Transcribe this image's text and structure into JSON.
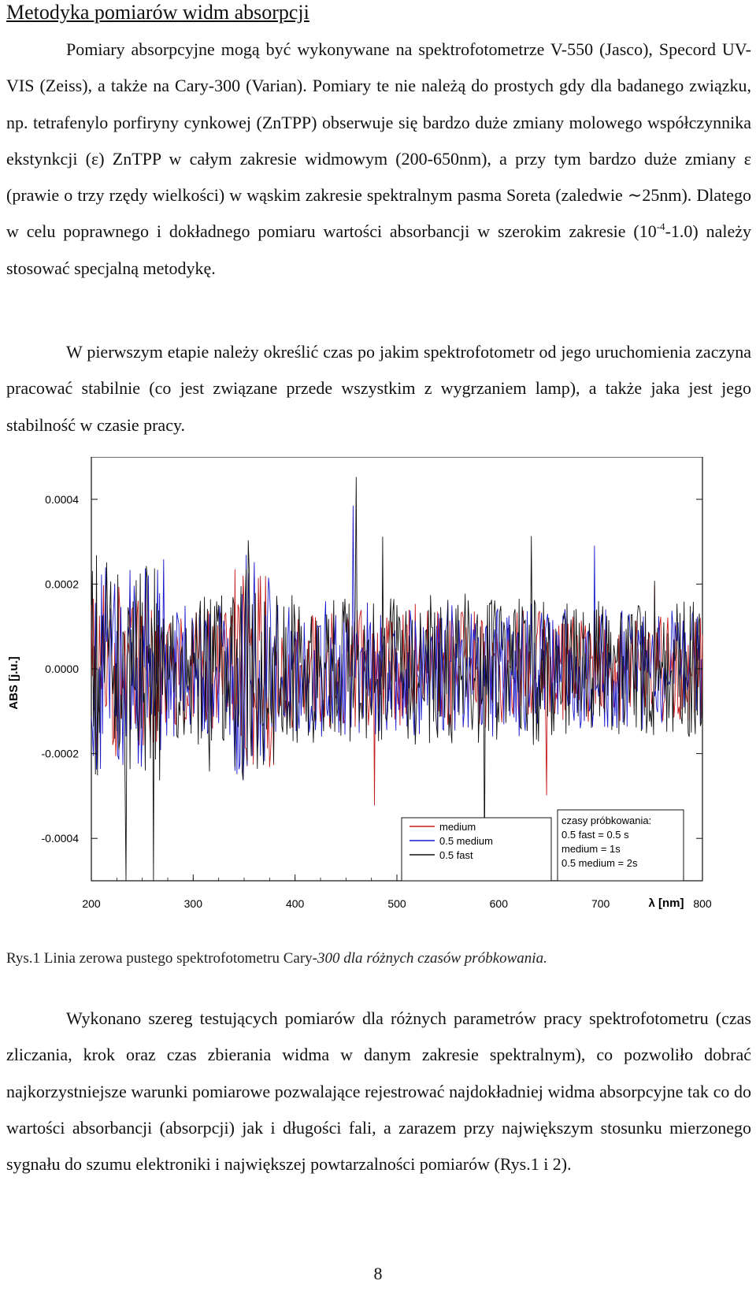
{
  "title": "Metodyka pomiarów widm absorpcji",
  "paragraph1": {
    "part1": "Pomiary absorpcyjne mogą być wykonywane na spektrofotometrze V-550 (Jasco), Specord UV-VIS (Zeiss), a także na Cary-300 (Varian). Pomiary te nie należą do prostych gdy dla badanego związku, np. tetrafenylo porfiryny cynkowej (ZnTPP) obserwuje się bardzo duże zmiany molowego współczynnika ekstynkcji (ε) ZnTPP w całym zakresie widmowym (200-650nm), a przy tym bardzo duże zmiany ε (prawie o trzy rzędy wielkości) w wąskim zakresie spektralnym pasma Soreta (zaledwie ∼25nm). Dlatego w celu poprawnego i dokładnego pomiaru wartości absorbancji w szerokim zakresie (10",
    "sup": "-4",
    "part2": "-1.0) należy stosować specjalną metodykę."
  },
  "paragraph2": "W pierwszym etapie należy określić czas po jakim spektrofotometr od jego uruchomienia zaczyna pracować stabilnie (co jest związane przede wszystkim z wygrzaniem lamp), a także jaka jest jego stabilność w czasie pracy.",
  "caption": {
    "normal": "Rys.1 Linia zerowa pustego spektrofotometru Cary-",
    "italic": "300 dla różnych czasów próbkowania."
  },
  "paragraph3": "Wykonano szereg testujących pomiarów dla różnych parametrów pracy spektrofotometru  (czas zliczania, krok oraz czas zbierania widma w danym zakresie spektralnym), co pozwoliło dobrać najkorzystniejsze warunki pomiarowe pozwalające rejestrować najdokładniej widma absorpcyjne tak co do wartości absorbancji (absorpcji) jak i długości fali, a zarazem przy największym stosunku mierzonego sygnału do szumu elektroniki i największej powtarzalności pomiarów (Rys.1 i 2).",
  "page_number": "8",
  "chart_data": {
    "type": "line",
    "xlabel": "λ [nm]",
    "ylabel": "ABS [j.u.]",
    "xlim": [
      200,
      800
    ],
    "ylim": [
      -0.0005,
      0.0005
    ],
    "x_ticks": [
      "200",
      "300",
      "400",
      "500",
      "600",
      "700",
      "800"
    ],
    "y_ticks": [
      "0.0004",
      "0.0002",
      "0.0000",
      "-0.0002",
      "-0.0004"
    ],
    "x_step": 1,
    "series": [
      {
        "name": "medium",
        "color": "#c41a1a",
        "amplitude": 0.00014,
        "seed": 11
      },
      {
        "name": "0.5 medium",
        "color": "#1a1acc",
        "amplitude": 0.00016,
        "seed": 29
      },
      {
        "name": "0.5 fast",
        "color": "#111111",
        "amplitude": 0.00018,
        "seed": 47
      }
    ],
    "legend": {
      "position": "bottom-right"
    },
    "annotation": {
      "lines": [
        "czasy próbkowania:",
        "0.5 fast = 0.5 s",
        "medium = 1s",
        "0.5 medium = 2s"
      ],
      "position": "bottom-right"
    },
    "grid": false
  }
}
